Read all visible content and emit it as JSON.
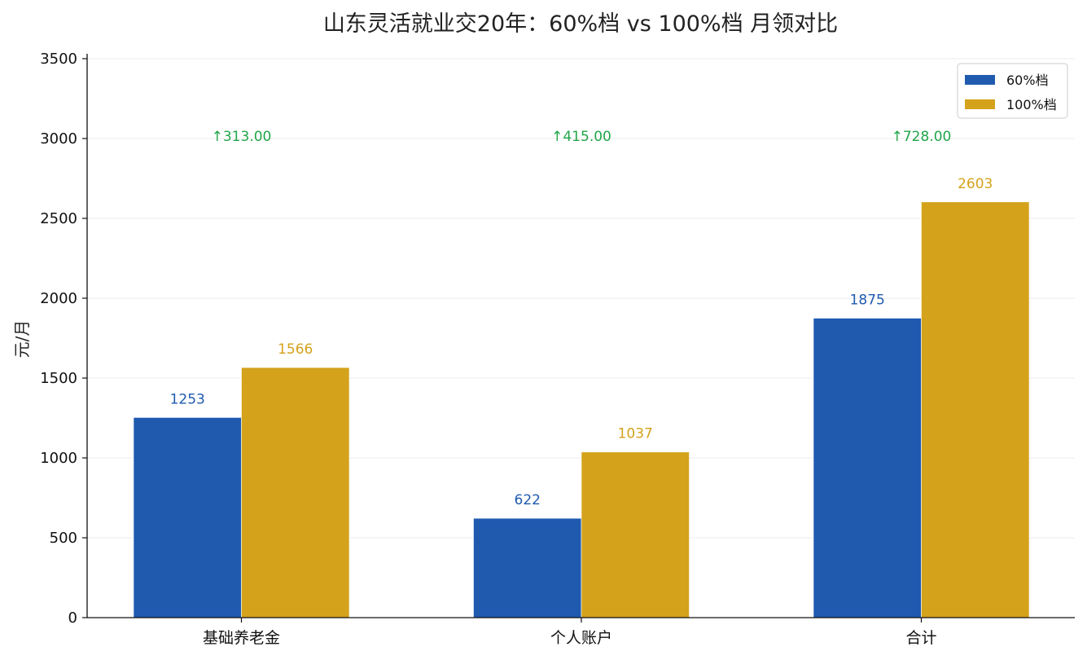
{
  "chart_data": {
    "type": "bar",
    "title": "山东灵活就业交20年：60%档 vs 100%档 月领对比",
    "xlabel": "",
    "ylabel": "元/月",
    "ylim": [
      0,
      3500
    ],
    "yticks": [
      0,
      500,
      1000,
      1500,
      2000,
      2500,
      3000,
      3500
    ],
    "categories": [
      "基础养老金",
      "个人账户",
      "合计"
    ],
    "series": [
      {
        "name": "60%档",
        "color": "#1f5aaf",
        "values": [
          1253,
          622,
          1875
        ],
        "labels": [
          "1253",
          "622",
          "1875"
        ]
      },
      {
        "name": "100%档",
        "color": "#d4a21b",
        "values": [
          1566,
          1037,
          2603
        ],
        "labels": [
          "1566",
          "1037",
          "2603"
        ]
      }
    ],
    "annotations": [
      "↑313.00",
      "↑415.00",
      "↑728.00"
    ],
    "annotation_y": 3050,
    "annotation_color": "#22a64a",
    "grid": true,
    "legend": "top-right"
  }
}
